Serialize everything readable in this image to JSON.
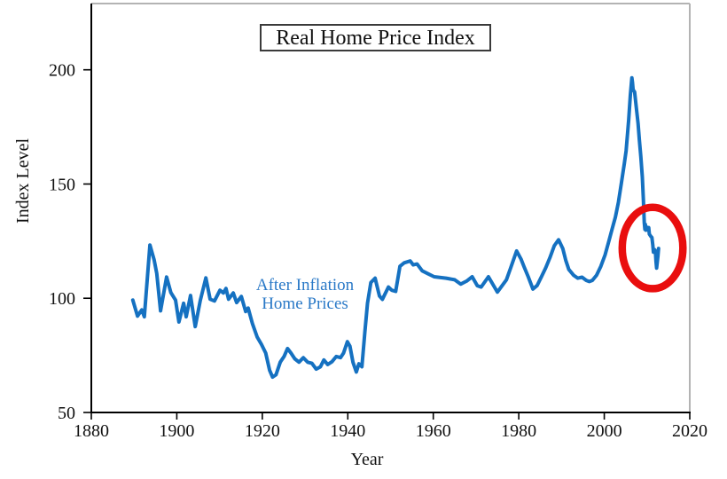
{
  "figure": {
    "title": "Real Home Price Index",
    "xlabel": "Year",
    "ylabel": "Index Level",
    "annotation": {
      "line1": "After Inflation",
      "line2": "Home Prices"
    }
  },
  "colors": {
    "line": "#1571c1",
    "annotation_text": "#2a79c7",
    "highlight": "#e90e0e",
    "axis": "#000000",
    "frame": "#b3b3b3",
    "text": "#101010"
  },
  "chart_data": {
    "type": "line",
    "title": "Real Home Price Index",
    "xlabel": "Year",
    "ylabel": "Index Level",
    "xlim": [
      1880,
      2020
    ],
    "ylim": [
      50,
      229
    ],
    "x_ticks": [
      1880,
      1900,
      1920,
      1940,
      1960,
      1980,
      2000,
      2020
    ],
    "y_ticks": [
      50,
      100,
      150,
      200
    ],
    "grid": false,
    "legend_position": "none",
    "series": [
      {
        "name": "After Inflation Home Prices",
        "color": "#1571c1",
        "points": [
          [
            1889.7,
            99.2
          ],
          [
            1890.8,
            92.2
          ],
          [
            1891.8,
            94.9
          ],
          [
            1892.4,
            91.9
          ],
          [
            1893.7,
            123.3
          ],
          [
            1894.7,
            116.7
          ],
          [
            1895.3,
            110.9
          ],
          [
            1896.2,
            94.5
          ],
          [
            1897.6,
            109.3
          ],
          [
            1898.6,
            102.5
          ],
          [
            1899.7,
            99.2
          ],
          [
            1900.5,
            89.6
          ],
          [
            1901.6,
            97.8
          ],
          [
            1902.2,
            91.9
          ],
          [
            1903.2,
            101.2
          ],
          [
            1904.3,
            87.6
          ],
          [
            1905.5,
            99.0
          ],
          [
            1906.8,
            108.9
          ],
          [
            1907.8,
            99.6
          ],
          [
            1908.8,
            98.8
          ],
          [
            1910.1,
            103.5
          ],
          [
            1910.9,
            102.3
          ],
          [
            1911.5,
            104.3
          ],
          [
            1912.1,
            99.6
          ],
          [
            1913.2,
            102.3
          ],
          [
            1914.0,
            98.1
          ],
          [
            1915.1,
            100.8
          ],
          [
            1916.1,
            94.2
          ],
          [
            1916.7,
            95.7
          ],
          [
            1917.7,
            88.8
          ],
          [
            1918.8,
            83.0
          ],
          [
            1919.8,
            79.8
          ],
          [
            1920.8,
            76.0
          ],
          [
            1921.7,
            68.5
          ],
          [
            1922.4,
            65.5
          ],
          [
            1923.2,
            66.5
          ],
          [
            1924.2,
            72.0
          ],
          [
            1925.1,
            74.5
          ],
          [
            1925.9,
            78.0
          ],
          [
            1926.7,
            76.0
          ],
          [
            1927.6,
            73.5
          ],
          [
            1928.6,
            72.0
          ],
          [
            1929.6,
            74.0
          ],
          [
            1930.6,
            72.0
          ],
          [
            1931.6,
            71.5
          ],
          [
            1932.6,
            69.0
          ],
          [
            1933.6,
            70.0
          ],
          [
            1934.4,
            73.0
          ],
          [
            1935.3,
            71.0
          ],
          [
            1936.3,
            72.2
          ],
          [
            1937.3,
            74.5
          ],
          [
            1938.3,
            74.0
          ],
          [
            1939.0,
            76.0
          ],
          [
            1939.9,
            81.0
          ],
          [
            1940.5,
            79.0
          ],
          [
            1941.2,
            72.0
          ],
          [
            1942.0,
            67.7
          ],
          [
            1942.6,
            71.3
          ],
          [
            1943.3,
            70.0
          ],
          [
            1944.0,
            85.5
          ],
          [
            1944.6,
            97.8
          ],
          [
            1945.4,
            106.9
          ],
          [
            1946.4,
            108.8
          ],
          [
            1947.4,
            101.0
          ],
          [
            1948.1,
            99.5
          ],
          [
            1949.5,
            104.9
          ],
          [
            1950.3,
            103.5
          ],
          [
            1951.2,
            103.0
          ],
          [
            1952.2,
            114.0
          ],
          [
            1953.2,
            115.5
          ],
          [
            1954.6,
            116.3
          ],
          [
            1955.3,
            114.6
          ],
          [
            1956.2,
            115.0
          ],
          [
            1957.4,
            112.0
          ],
          [
            1958.8,
            110.7
          ],
          [
            1960.2,
            109.4
          ],
          [
            1963.0,
            108.8
          ],
          [
            1965.0,
            108.1
          ],
          [
            1966.4,
            106.2
          ],
          [
            1967.8,
            107.5
          ],
          [
            1969.1,
            109.4
          ],
          [
            1970.3,
            105.5
          ],
          [
            1971.2,
            104.9
          ],
          [
            1972.9,
            109.4
          ],
          [
            1975.0,
            102.7
          ],
          [
            1977.1,
            108.1
          ],
          [
            1978.1,
            113.3
          ],
          [
            1979.5,
            120.7
          ],
          [
            1980.5,
            117.2
          ],
          [
            1981.2,
            114.0
          ],
          [
            1982.2,
            109.4
          ],
          [
            1983.3,
            104.0
          ],
          [
            1984.3,
            105.6
          ],
          [
            1985.3,
            109.4
          ],
          [
            1986.3,
            113.3
          ],
          [
            1987.3,
            117.8
          ],
          [
            1988.3,
            123.0
          ],
          [
            1989.3,
            125.6
          ],
          [
            1990.3,
            121.7
          ],
          [
            1991.0,
            116.5
          ],
          [
            1991.7,
            112.6
          ],
          [
            1992.8,
            110.1
          ],
          [
            1993.8,
            108.8
          ],
          [
            1994.8,
            109.2
          ],
          [
            1995.8,
            107.8
          ],
          [
            1996.5,
            107.3
          ],
          [
            1997.2,
            107.8
          ],
          [
            1998.2,
            110.1
          ],
          [
            1999.2,
            114.0
          ],
          [
            2000.2,
            119.0
          ],
          [
            2001.0,
            124.5
          ],
          [
            2001.8,
            130.0
          ],
          [
            2002.6,
            135.5
          ],
          [
            2003.3,
            142.0
          ],
          [
            2004.0,
            150.5
          ],
          [
            2004.7,
            159.0
          ],
          [
            2005.1,
            164.5
          ],
          [
            2005.7,
            178.0
          ],
          [
            2006.1,
            189.0
          ],
          [
            2006.45,
            196.5
          ],
          [
            2006.6,
            194.5
          ],
          [
            2006.75,
            191.3
          ],
          [
            2007.1,
            190.3
          ],
          [
            2007.5,
            183.5
          ],
          [
            2007.9,
            176.5
          ],
          [
            2008.2,
            169.5
          ],
          [
            2008.55,
            162.0
          ],
          [
            2008.9,
            153.0
          ],
          [
            2009.15,
            143.0
          ],
          [
            2009.35,
            133.0
          ],
          [
            2009.5,
            130.2
          ],
          [
            2009.6,
            132.3
          ],
          [
            2009.75,
            129.8
          ],
          [
            2009.9,
            131.2
          ],
          [
            2010.15,
            130.4
          ],
          [
            2010.4,
            130.9
          ],
          [
            2010.55,
            128.1
          ],
          [
            2010.85,
            127.2
          ],
          [
            2011.15,
            126.6
          ],
          [
            2011.35,
            123.3
          ],
          [
            2011.5,
            120.2
          ],
          [
            2011.75,
            121.3
          ],
          [
            2011.95,
            120.8
          ],
          [
            2012.1,
            116.2
          ],
          [
            2012.25,
            113.2
          ],
          [
            2012.55,
            118.5
          ],
          [
            2012.7,
            121.8
          ]
        ]
      }
    ],
    "annotations": [
      {
        "text": "After Inflation Home Prices",
        "color": "#2a79c7",
        "near_year": 1942,
        "near_value": 103
      }
    ],
    "highlight_ellipse": {
      "center_year": 2011.3,
      "center_value": 122.0,
      "rx_years": 7.1,
      "ry_index": 17.8,
      "color": "#e90e0e",
      "stroke_px": 8.5
    }
  }
}
